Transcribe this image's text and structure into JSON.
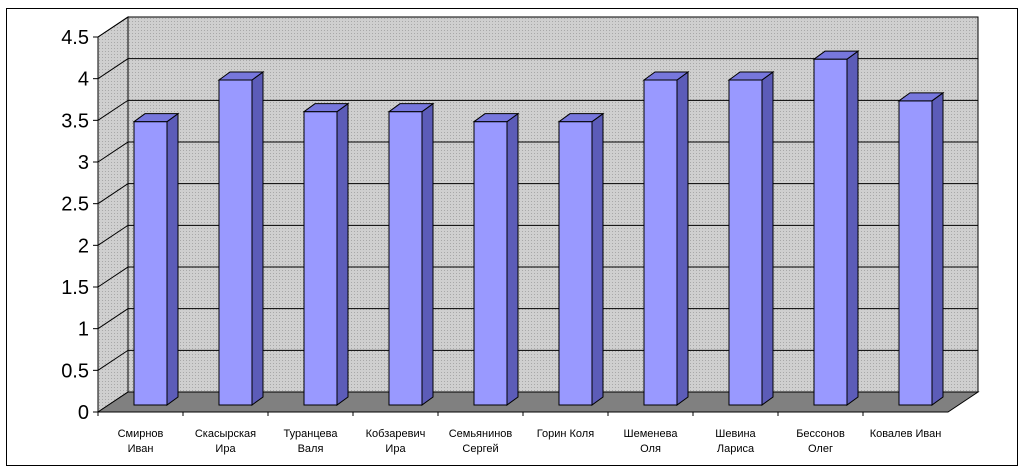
{
  "chart_data": {
    "type": "bar",
    "style": "3d-column",
    "categories": [
      [
        "Смирнов",
        "Иван"
      ],
      [
        "Скасырская",
        "Ира"
      ],
      [
        "Туранцева",
        "Валя"
      ],
      [
        "Кобзаревич",
        "Ира"
      ],
      [
        "Семьянинов",
        "Сергей"
      ],
      [
        "Горин Коля"
      ],
      [
        "Шеменева",
        "Оля"
      ],
      [
        "Шевина",
        "Лариса"
      ],
      [
        "Бессонов",
        "Олег"
      ],
      [
        "Ковалев Иван"
      ]
    ],
    "values": [
      3.4,
      3.9,
      3.52,
      3.52,
      3.4,
      3.4,
      3.9,
      3.9,
      4.15,
      3.65
    ],
    "ylim": [
      0,
      4.5
    ],
    "yticks": [
      "0",
      "0.5",
      "1",
      "1.5",
      "2",
      "2.5",
      "3",
      "3.5",
      "4",
      "4.5"
    ],
    "grid": true,
    "legend": "none",
    "colors": {
      "bar_front": "#9999ff",
      "bar_side": "#5c5cb8",
      "bar_top": "#7777dd",
      "wall": "#c8c8c8",
      "floor": "#808080",
      "gridline": "#000000"
    }
  }
}
